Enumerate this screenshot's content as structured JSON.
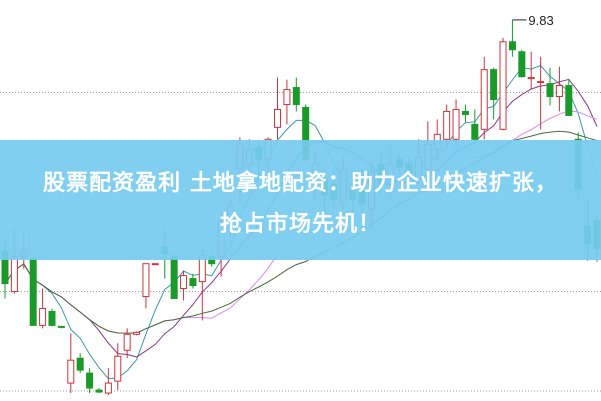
{
  "headline": {
    "line1": "股票配资盈利 土地拿地配资：助力企业快速扩张，",
    "line2": "抢占市场先机！"
  },
  "chart_data": {
    "type": "candlestick",
    "title": "",
    "xlabel": "",
    "ylabel": "",
    "ylim": [
      6.0,
      10.03
    ],
    "grid": true,
    "gridlines": [
      9.1,
      8.1,
      7.1,
      6.1
    ],
    "max_annotation": "9.83",
    "up_color": "#d0343c",
    "down_color": "#1a9a28",
    "ma_colors": [
      "#3a9aa8",
      "#8a3a8a",
      "#e08ae8",
      "#4a6a3a"
    ],
    "ma_periods": [
      5,
      10,
      20,
      30
    ],
    "candles": [
      [
        7.5,
        7.18,
        7.63,
        7.03
      ],
      [
        7.1,
        7.45,
        7.75,
        7.08
      ],
      [
        7.45,
        7.5,
        7.73,
        7.33
      ],
      [
        7.43,
        6.76,
        7.45,
        6.76
      ],
      [
        6.76,
        6.93,
        7.13,
        6.73
      ],
      [
        6.9,
        6.76,
        6.93,
        6.75
      ],
      [
        6.75,
        6.74,
        6.75,
        6.73
      ],
      [
        6.18,
        6.41,
        6.68,
        6.08
      ],
      [
        6.43,
        6.31,
        6.48,
        6.28
      ],
      [
        6.28,
        6.13,
        6.33,
        6.08
      ],
      [
        6.11,
        6.09,
        6.13,
        6.08
      ],
      [
        6.08,
        6.18,
        6.33,
        6.06
      ],
      [
        6.2,
        6.45,
        6.58,
        6.11
      ],
      [
        6.51,
        6.67,
        6.73,
        6.43
      ],
      [
        6.67,
        6.69,
        6.7,
        6.66
      ],
      [
        7.05,
        7.38,
        7.38,
        6.93
      ],
      [
        7.38,
        7.38,
        7.38,
        7.38
      ],
      [
        7.55,
        7.48,
        7.75,
        7.23
      ],
      [
        7.45,
        7.03,
        7.48,
        7.03
      ],
      [
        7.13,
        7.26,
        7.31,
        7.01
      ],
      [
        7.23,
        7.16,
        7.28,
        7.13
      ],
      [
        7.2,
        7.46,
        7.53,
        6.81
      ],
      [
        7.45,
        7.38,
        7.53,
        7.35
      ],
      [
        7.45,
        7.81,
        7.92,
        7.25
      ],
      [
        7.81,
        7.96,
        8.03,
        7.63
      ],
      [
        8.33,
        8.58,
        8.65,
        7.98
      ],
      [
        8.38,
        8.53,
        8.63,
        8.23
      ],
      [
        8.55,
        8.43,
        8.6,
        8.23
      ],
      [
        8.43,
        8.63,
        8.65,
        8.28
      ],
      [
        8.75,
        8.93,
        9.25,
        8.63
      ],
      [
        8.98,
        9.13,
        9.23,
        8.78
      ],
      [
        9.15,
        8.98,
        9.25,
        8.91
      ],
      [
        8.95,
        8.43,
        8.98,
        8.43
      ],
      [
        8.23,
        8.38,
        8.53,
        8.03
      ],
      [
        8.23,
        8.07,
        8.33,
        7.83
      ],
      [
        8.18,
        8.03,
        8.33,
        7.93
      ],
      [
        7.98,
        8.33,
        8.46,
        7.93
      ],
      [
        8.13,
        8.03,
        8.23,
        7.88
      ],
      [
        8.13,
        7.98,
        8.33,
        7.73
      ],
      [
        7.93,
        8.31,
        8.41,
        7.73
      ],
      [
        8.38,
        8.18,
        8.53,
        8.08
      ],
      [
        8.18,
        8.38,
        8.58,
        8.03
      ],
      [
        8.43,
        8.35,
        8.48,
        8.28
      ],
      [
        8.38,
        8.23,
        8.46,
        8.18
      ],
      [
        8.23,
        8.45,
        8.63,
        8.18
      ],
      [
        8.33,
        8.58,
        8.81,
        8.28
      ],
      [
        8.53,
        8.68,
        8.83,
        8.43
      ],
      [
        8.63,
        8.91,
        8.98,
        8.53
      ],
      [
        8.63,
        8.93,
        9.03,
        8.53
      ],
      [
        8.91,
        8.88,
        8.98,
        8.8
      ],
      [
        8.78,
        8.63,
        8.93,
        8.58
      ],
      [
        8.73,
        9.33,
        9.46,
        8.63
      ],
      [
        9.33,
        9.03,
        9.35,
        8.83
      ],
      [
        8.73,
        9.61,
        9.65,
        8.72
      ],
      [
        9.61,
        9.53,
        9.83,
        9.46
      ],
      [
        9.51,
        9.26,
        9.53,
        9.25
      ],
      [
        9.24,
        9.25,
        9.51,
        9.13
      ],
      [
        9.2,
        9.21,
        9.46,
        8.73
      ],
      [
        9.19,
        9.06,
        9.35,
        8.97
      ],
      [
        9.06,
        9.17,
        9.36,
        8.91
      ],
      [
        9.17,
        8.87,
        9.23,
        8.87
      ],
      [
        8.63,
        8.13,
        8.7,
        8.03
      ],
      [
        7.76,
        7.58,
        8.03,
        7.41
      ],
      [
        7.81,
        7.53,
        7.88,
        7.4
      ]
    ]
  }
}
